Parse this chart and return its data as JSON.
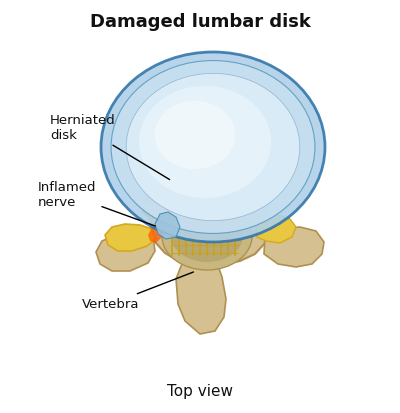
{
  "title": "Damaged lumbar disk",
  "subtitle": "Top view",
  "bg_color": "#ffffff",
  "title_fontsize": 13,
  "subtitle_fontsize": 11,
  "labels": {
    "herniated_disk": "Herniated\ndisk",
    "inflamed_nerve": "Inflamed\nnerve",
    "vertebra": "Vertebra"
  },
  "vertebra_color": "#d4c090",
  "vertebra_edge": "#b09050",
  "disk_blue": "#b0d0e8",
  "disk_mid": "#c8e0f0",
  "disk_inner": "#ddeef8",
  "disk_core": "#eef6fc",
  "nerve_gold": "#d4a820",
  "nerve_light": "#e8c840",
  "inflamed_red": "#cc2200",
  "canal_color": "#c8b080",
  "text_color": "#111111"
}
